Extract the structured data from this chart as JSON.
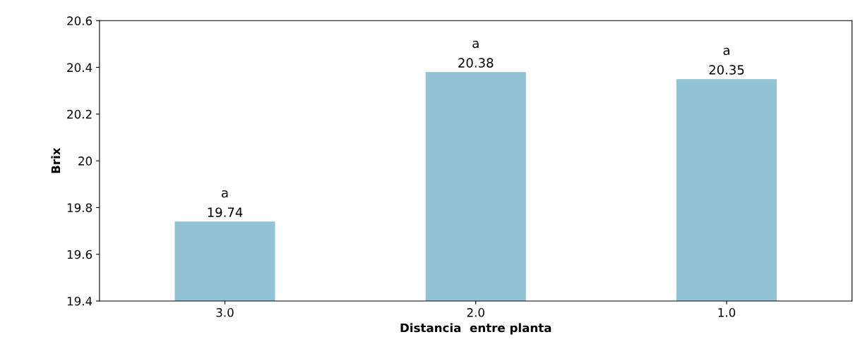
{
  "chart_data": {
    "type": "bar",
    "xlabel": "Distancia  entre planta",
    "ylabel": "Brix",
    "categories": [
      "3.0",
      "2.0",
      "1.0"
    ],
    "values": [
      19.74,
      20.38,
      20.35
    ],
    "color": "#92c3d4",
    "ylim": [
      19.4,
      20.6
    ],
    "yticks": [
      19.4,
      19.6,
      19.8,
      20,
      20.2,
      20.4,
      20.6
    ],
    "data_labels": true,
    "grid": false,
    "legend": false,
    "annotations": [
      {
        "text": "a",
        "x": "3.0",
        "y": 19.74
      },
      {
        "text": "a",
        "x": "2.0",
        "y": 20.38
      },
      {
        "text": "a",
        "x": "1.0",
        "y": 20.35
      }
    ]
  }
}
